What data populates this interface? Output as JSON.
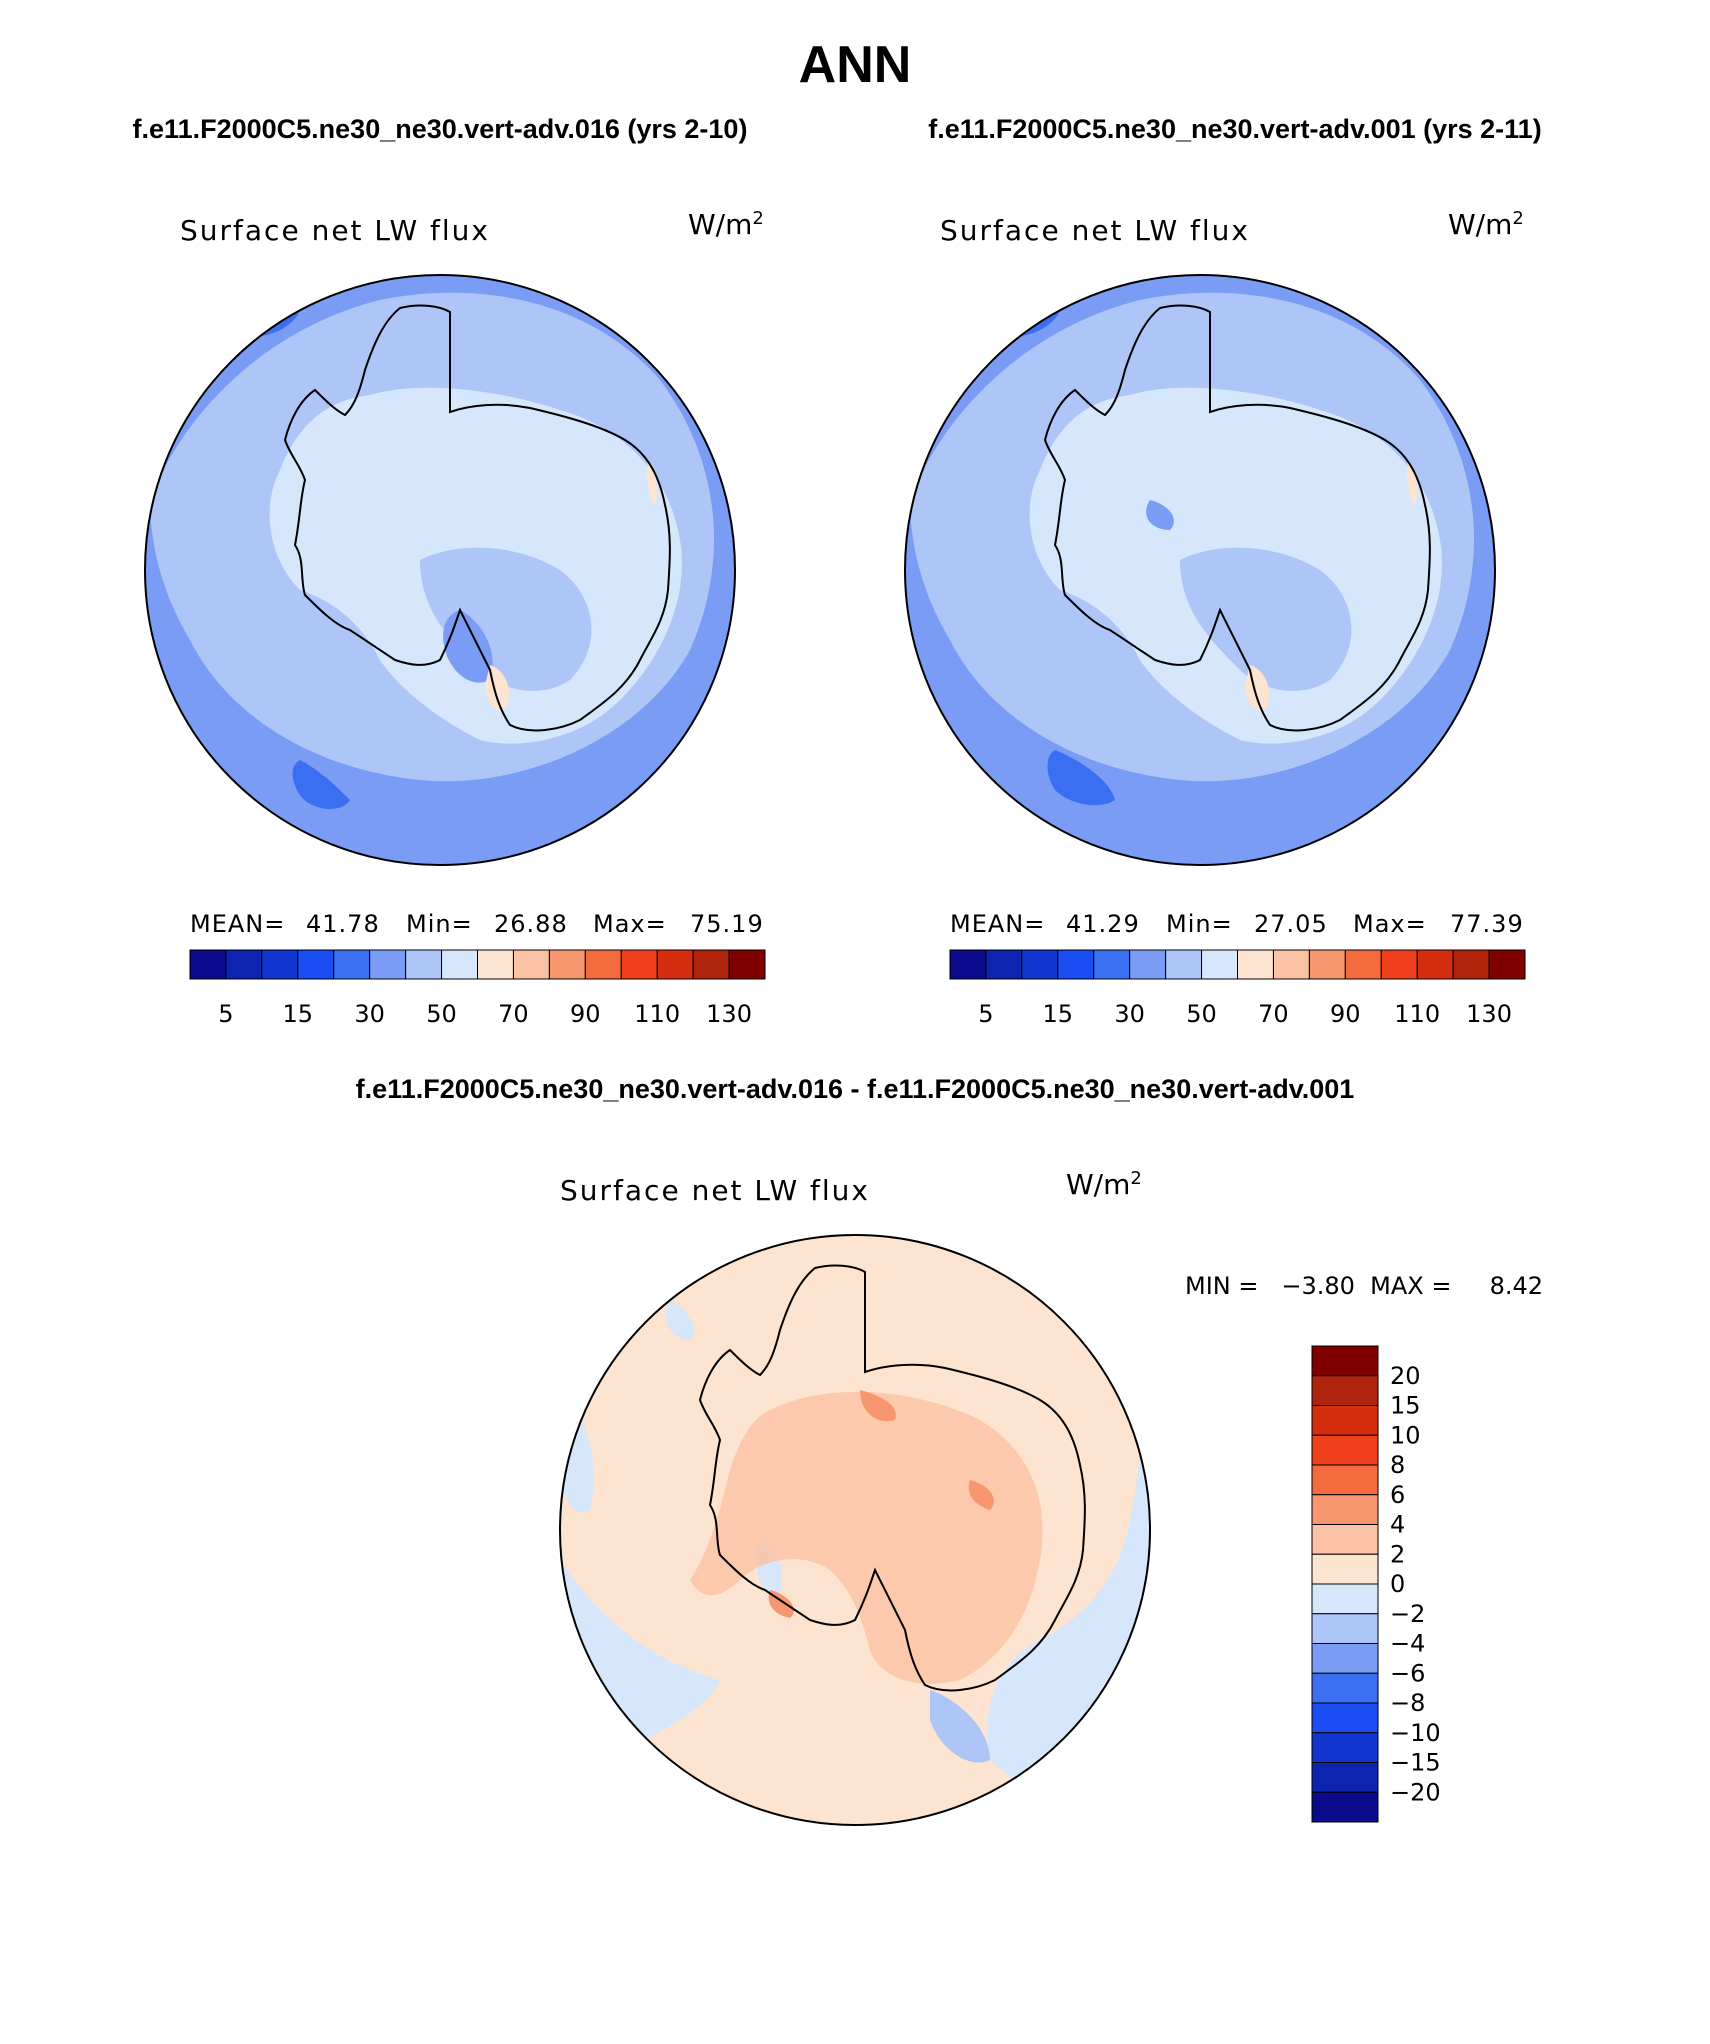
{
  "figure": {
    "title": "ANN",
    "header_left": "f.e11.F2000C5.ne30_ne30.vert-adv.016 (yrs 2-10)",
    "header_right": "f.e11.F2000C5.ne30_ne30.vert-adv.001 (yrs 2-11)",
    "diff_header": "f.e11.F2000C5.ne30_ne30.vert-adv.016 - f.e11.F2000C5.ne30_ne30.vert-adv.001"
  },
  "panels": [
    {
      "field": "Surface net LW flux",
      "units_base": "W/m",
      "units_exp": "2",
      "stats": {
        "mean_label": "MEAN=",
        "mean": "41.78",
        "min_label": "Min=",
        "min": "26.88",
        "max_label": "Max=",
        "max": "75.19"
      }
    },
    {
      "field": "Surface net LW flux",
      "units_base": "W/m",
      "units_exp": "2",
      "stats": {
        "mean_label": "MEAN=",
        "mean": "41.29",
        "min_label": "Min=",
        "min": "27.05",
        "max_label": "Max=",
        "max": "77.39"
      }
    }
  ],
  "diff_panel": {
    "field": "Surface net LW flux",
    "units_base": "W/m",
    "units_exp": "2",
    "minmax_text": "MIN =   −3.80  MAX =     8.42"
  },
  "colorbar_top": {
    "colors": [
      "#0a0a8c",
      "#0d24b0",
      "#1035d0",
      "#1a4df2",
      "#3b6ff2",
      "#7a9cf5",
      "#aec6f7",
      "#d7e7fb",
      "#fde4d0",
      "#fbc2a3",
      "#f7976f",
      "#f46b3e",
      "#f03f1c",
      "#d42e0f",
      "#b0230d",
      "#800000"
    ],
    "labels": [
      "5",
      "15",
      "30",
      "50",
      "70",
      "90",
      "110",
      "130"
    ]
  },
  "colorbar_diff": {
    "colors": [
      "#800000",
      "#b0230d",
      "#d42e0f",
      "#f03f1c",
      "#f46b3e",
      "#f7976f",
      "#fbc2a3",
      "#fde4d0",
      "#d7e7fb",
      "#aec6f7",
      "#7a9cf5",
      "#3b6ff2",
      "#1a4df2",
      "#1035d0",
      "#0d24b0",
      "#0a0a8c"
    ],
    "labels": [
      "20",
      "15",
      "10",
      "8",
      "6",
      "4",
      "2",
      "0",
      "−2",
      "−4",
      "−6",
      "−8",
      "−10",
      "−15",
      "−20"
    ]
  }
}
